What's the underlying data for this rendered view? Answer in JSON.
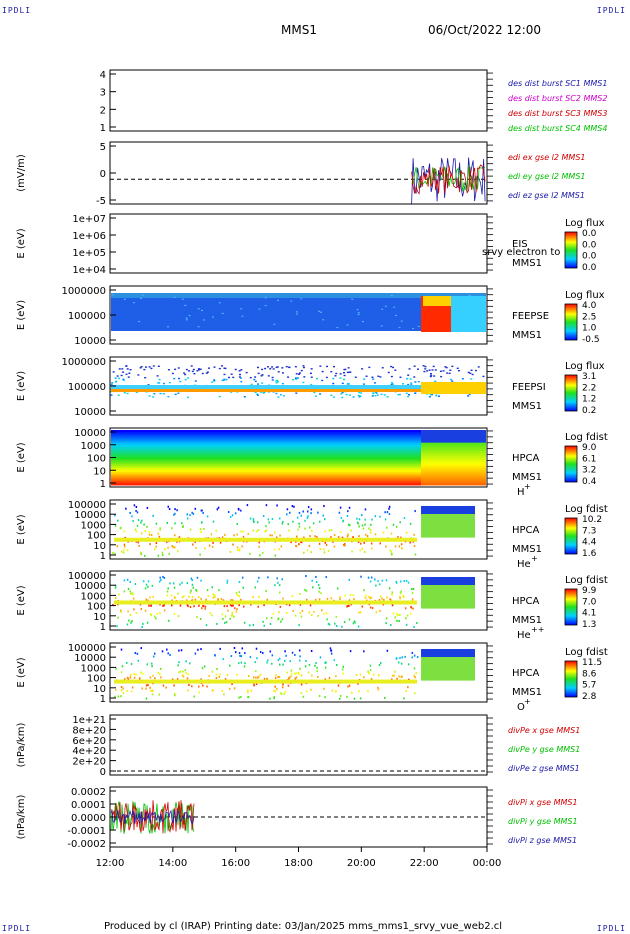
{
  "corner_labels": {
    "tl": "IPDLI",
    "tr": "IPDLI",
    "bl": "IPDLI",
    "br": "IPDLI"
  },
  "header": {
    "spacecraft": "MMS1",
    "datetime": "06/Oct/2022 12:00"
  },
  "footer": {
    "text": "Produced by cl (IRAP)   Printing date: 03/Jan/2025   mms_mms1_srvy_vue_web2.cl"
  },
  "time_axis": {
    "labels": [
      "12:00",
      "14:00",
      "16:00",
      "18:00",
      "20:00",
      "22:00",
      "00:00"
    ],
    "range_hours": [
      12,
      24
    ]
  },
  "chart_data": [
    {
      "type": "line",
      "id": "des-dist-burst",
      "ylabel": "",
      "yticks": [
        "4",
        "3",
        "2",
        "1"
      ],
      "ylim": [
        0.7,
        4.3
      ],
      "legend": [
        {
          "name": "des dist burst SC1 MMS1",
          "color": "#1a1aa8"
        },
        {
          "name": "des dist burst SC2 MMS2",
          "color": "#d000d0"
        },
        {
          "name": "des dist burst SC3 MMS3",
          "color": "#d00000"
        },
        {
          "name": "des dist burst SC4 MMS4",
          "color": "#00c000"
        }
      ],
      "series": []
    },
    {
      "type": "line",
      "id": "edi",
      "ylabel": "(mV/m)",
      "yticks": [
        "5",
        "0",
        "-5"
      ],
      "ylim": [
        -6,
        9
      ],
      "legend": [
        {
          "name": "edi ex gse l2 MMS1",
          "color": "#d00000"
        },
        {
          "name": "edi ey gse l2 MMS1",
          "color": "#00c000"
        },
        {
          "name": "edi ez gse l2 MMS1",
          "color": "#1a1aa8"
        }
      ],
      "activity_start_hour": 21.6
    },
    {
      "type": "heatmap",
      "id": "eis",
      "ylabel": "E (eV)",
      "yticks": [
        "1e+07",
        "1e+06",
        "1e+05",
        "1e+04"
      ],
      "labels": [
        "EIS",
        "MMS1"
      ],
      "overlay_text": "srvy electron to",
      "colorbar": {
        "title": "Log flux",
        "ticks": [
          "0.0",
          "0.0",
          "0.0",
          "0.0"
        ]
      }
    },
    {
      "type": "heatmap",
      "id": "feepse",
      "ylabel": "E (eV)",
      "yticks": [
        "1000000",
        "100000",
        "10000"
      ],
      "labels": [
        "FEEPSE",
        "MMS1"
      ],
      "colorbar": {
        "title": "Log flux",
        "ticks": [
          "4.0",
          "2.5",
          "1.0",
          "-0.5"
        ]
      }
    },
    {
      "type": "heatmap",
      "id": "feepsi",
      "ylabel": "E (eV)",
      "yticks": [
        "1000000",
        "100000",
        "10000"
      ],
      "labels": [
        "FEEPSI",
        "MMS1"
      ],
      "colorbar": {
        "title": "Log flux",
        "ticks": [
          "3.1",
          "2.2",
          "1.2",
          "0.2"
        ]
      }
    },
    {
      "type": "heatmap",
      "id": "hpca-h",
      "ylabel": "E (eV)",
      "yticks": [
        "10000",
        "1000",
        "100",
        "10",
        "1"
      ],
      "labels": [
        "HPCA",
        "MMS1"
      ],
      "species": "H",
      "charge": "+",
      "colorbar": {
        "title": "Log fdist",
        "ticks": [
          "9.0",
          "6.1",
          "3.2",
          "0.4"
        ]
      }
    },
    {
      "type": "heatmap",
      "id": "hpca-he",
      "ylabel": "E (eV)",
      "yticks": [
        "100000",
        "10000",
        "1000",
        "100",
        "10",
        "1"
      ],
      "labels": [
        "HPCA",
        "MMS1"
      ],
      "species": "He",
      "charge": "+",
      "colorbar": {
        "title": "Log fdist",
        "ticks": [
          "10.2",
          "7.3",
          "4.4",
          "1.6"
        ]
      }
    },
    {
      "type": "heatmap",
      "id": "hpca-hepp",
      "ylabel": "E (eV)",
      "yticks": [
        "100000",
        "10000",
        "1000",
        "100",
        "10",
        "1"
      ],
      "labels": [
        "HPCA",
        "MMS1"
      ],
      "species": "He",
      "charge": "++",
      "colorbar": {
        "title": "Log fdist",
        "ticks": [
          "9.9",
          "7.0",
          "4.1",
          "1.3"
        ]
      }
    },
    {
      "type": "heatmap",
      "id": "hpca-o",
      "ylabel": "E (eV)",
      "yticks": [
        "100000",
        "10000",
        "1000",
        "100",
        "10",
        "1"
      ],
      "labels": [
        "HPCA",
        "MMS1"
      ],
      "species": "O",
      "charge": "+",
      "colorbar": {
        "title": "Log fdist",
        "ticks": [
          "11.5",
          "8.6",
          "5.7",
          "2.8"
        ]
      }
    },
    {
      "type": "line",
      "id": "divpe",
      "ylabel": "(nPa/km)",
      "yticks": [
        "1e+21",
        "8e+20",
        "6e+20",
        "4e+20",
        "2e+20",
        "0"
      ],
      "legend": [
        {
          "name": "divPe x gse MMS1",
          "color": "#d00000"
        },
        {
          "name": "divPe y gse MMS1",
          "color": "#00c000"
        },
        {
          "name": "divPe z gse MMS1",
          "color": "#1a1aa8"
        }
      ]
    },
    {
      "type": "line",
      "id": "divpi",
      "ylabel": "(nPa/km)",
      "yticks": [
        "0.0002",
        "0.0001",
        "0.0000",
        "-0.0001",
        "-0.0002"
      ],
      "ylim": [
        -0.00025,
        0.00025
      ],
      "legend": [
        {
          "name": "divPi x gse MMS1",
          "color": "#d00000"
        },
        {
          "name": "divPi y gse MMS1",
          "color": "#00c000"
        },
        {
          "name": "divPi z gse MMS1",
          "color": "#1a1aa8"
        }
      ],
      "data_end_hour": 14.7
    }
  ]
}
